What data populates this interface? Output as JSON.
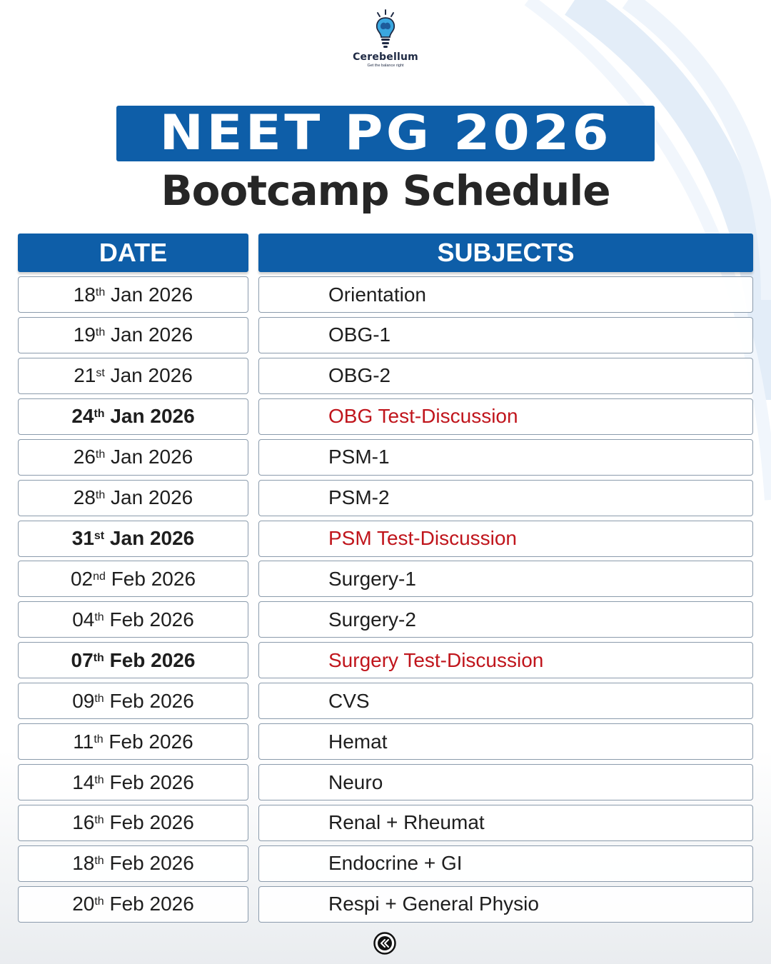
{
  "brand": {
    "name": "Cerebellum",
    "tagline": "Get the balance right"
  },
  "title": {
    "main": "NEET PG 2026",
    "sub": "Bootcamp Schedule"
  },
  "table": {
    "headers": {
      "date": "DATE",
      "subjects": "SUBJECTS"
    },
    "rows": [
      {
        "day": "18",
        "suffix": "th",
        "rest": " Jan 2026",
        "subject": "Orientation",
        "highlight": false
      },
      {
        "day": "19",
        "suffix": "th",
        "rest": " Jan 2026",
        "subject": "OBG-1",
        "highlight": false
      },
      {
        "day": "21",
        "suffix": "st",
        "rest": " Jan 2026",
        "subject": "OBG-2",
        "highlight": false
      },
      {
        "day": "24",
        "suffix": "th",
        "rest": " Jan 2026",
        "subject": "OBG Test-Discussion",
        "highlight": true
      },
      {
        "day": "26",
        "suffix": "th",
        "rest": " Jan 2026",
        "subject": "PSM-1",
        "highlight": false
      },
      {
        "day": "28",
        "suffix": "th",
        "rest": " Jan 2026",
        "subject": "PSM-2",
        "highlight": false
      },
      {
        "day": "31",
        "suffix": "st",
        "rest": " Jan 2026",
        "subject": "PSM Test-Discussion",
        "highlight": true
      },
      {
        "day": "02",
        "suffix": "nd",
        "rest": " Feb 2026",
        "subject": "Surgery-1",
        "highlight": false
      },
      {
        "day": "04",
        "suffix": "th",
        "rest": " Feb 2026",
        "subject": "Surgery-2",
        "highlight": false
      },
      {
        "day": "07",
        "suffix": "th",
        "rest": " Feb 2026",
        "subject": "Surgery Test-Discussion",
        "highlight": true
      },
      {
        "day": "09",
        "suffix": "th",
        "rest": " Feb 2026",
        "subject": "CVS",
        "highlight": false
      },
      {
        "day": "11",
        "suffix": "th",
        "rest": " Feb 2026",
        "subject": "Hemat",
        "highlight": false
      },
      {
        "day": "14",
        "suffix": "th",
        "rest": " Feb 2026",
        "subject": "Neuro",
        "highlight": false
      },
      {
        "day": "16",
        "suffix": "th",
        "rest": " Feb 2026",
        "subject": "Renal + Rheumat",
        "highlight": false
      },
      {
        "day": "18",
        "suffix": "th",
        "rest": " Feb 2026",
        "subject": "Endocrine + GI",
        "highlight": false
      },
      {
        "day": "20",
        "suffix": "th",
        "rest": " Feb 2026",
        "subject": "Respi + General Physio",
        "highlight": false
      }
    ]
  },
  "icons": {
    "logo": "lightbulb-brain-icon",
    "nav": "double-chevron-left-icon"
  },
  "colors": {
    "primary_blue": "#0e5ea8",
    "highlight_red": "#c0151c",
    "text_dark": "#1e1e1e"
  }
}
